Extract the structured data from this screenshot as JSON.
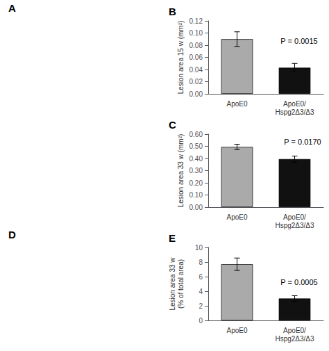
{
  "chart_data": [
    {
      "type": "bar",
      "title": "B",
      "categories": [
        "ApoE0",
        "ApoE0/\nHspg2Δ3/Δ3"
      ],
      "values": [
        0.09,
        0.043
      ],
      "errors": [
        0.012,
        0.007
      ],
      "colors": [
        "#aaaaaa",
        "#111111"
      ],
      "ylabel": "Lesion area 15 w (mm²)",
      "ylim": [
        0.0,
        0.12
      ],
      "yticks": [
        {
          "value": 0.0,
          "label": "0.00"
        },
        {
          "value": 0.02,
          "label": "0.02"
        },
        {
          "value": 0.04,
          "label": "0.04"
        },
        {
          "value": 0.06,
          "label": "0.06"
        },
        {
          "value": 0.08,
          "label": "0.08"
        },
        {
          "value": 0.1,
          "label": "0.10"
        },
        {
          "value": 0.12,
          "label": "0.12"
        }
      ],
      "annotations": [
        "P = 0.0015"
      ],
      "grid": false
    },
    {
      "type": "bar",
      "title": "C",
      "categories": [
        "ApoE0",
        "ApoE0/\nHspg2Δ3/Δ3"
      ],
      "values": [
        0.495,
        0.395
      ],
      "errors": [
        0.022,
        0.025
      ],
      "colors": [
        "#aaaaaa",
        "#111111"
      ],
      "ylabel": "Lesion area 33 w (mm²)",
      "ylim": [
        0.0,
        0.6
      ],
      "yticks": [
        {
          "value": 0.0,
          "label": "0.00"
        },
        {
          "value": 0.1,
          "label": "0.10"
        },
        {
          "value": 0.2,
          "label": "0.20"
        },
        {
          "value": 0.3,
          "label": "0.30"
        },
        {
          "value": 0.4,
          "label": "0.40"
        },
        {
          "value": 0.5,
          "label": "0.50"
        },
        {
          "value": 0.6,
          "label": "0.60"
        }
      ],
      "annotations": [
        "P = 0.0170"
      ],
      "grid": false
    },
    {
      "type": "bar",
      "title": "E",
      "categories": [
        "ApoE0",
        "ApoE0/\nHspg2Δ3/Δ3"
      ],
      "values": [
        7.7,
        3.0
      ],
      "errors": [
        0.85,
        0.38
      ],
      "colors": [
        "#aaaaaa",
        "#111111"
      ],
      "ylabel": "Lesion area 33 w\n(% of total area)",
      "ylim": [
        0,
        10
      ],
      "yticks": [
        0,
        2,
        4,
        6,
        8,
        10
      ],
      "annotations": [
        "P = 0.0005"
      ],
      "grid": false
    }
  ],
  "annotations": [
    "A",
    "D"
  ]
}
